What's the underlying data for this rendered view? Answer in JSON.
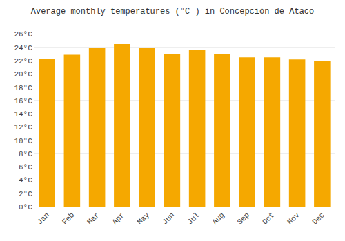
{
  "chart_data": {
    "type": "bar",
    "title": "Average monthly temperatures (°C ) in Concepción de Ataco",
    "categories": [
      "Jan",
      "Feb",
      "Mar",
      "Apr",
      "May",
      "Jun",
      "Jul",
      "Aug",
      "Sep",
      "Oct",
      "Nov",
      "Dec"
    ],
    "values": [
      22.3,
      22.9,
      24.0,
      24.5,
      24.0,
      23.0,
      23.6,
      23.0,
      22.5,
      22.5,
      22.2,
      21.9
    ],
    "color": "#F5A800",
    "ylim": [
      0,
      27
    ],
    "yticks": [
      {
        "value": 0,
        "label": "0°C"
      },
      {
        "value": 2,
        "label": "2°C"
      },
      {
        "value": 4,
        "label": "4°C"
      },
      {
        "value": 6,
        "label": "6°C"
      },
      {
        "value": 8,
        "label": "8°C"
      },
      {
        "value": 10,
        "label": "10°C"
      },
      {
        "value": 12,
        "label": "12°C"
      },
      {
        "value": 14,
        "label": "14°C"
      },
      {
        "value": 16,
        "label": "16°C"
      },
      {
        "value": 18,
        "label": "18°C"
      },
      {
        "value": 20,
        "label": "20°C"
      },
      {
        "value": 22,
        "label": "22°C"
      },
      {
        "value": 24,
        "label": "24°C"
      },
      {
        "value": 26,
        "label": "26°C"
      }
    ],
    "grid": true
  }
}
